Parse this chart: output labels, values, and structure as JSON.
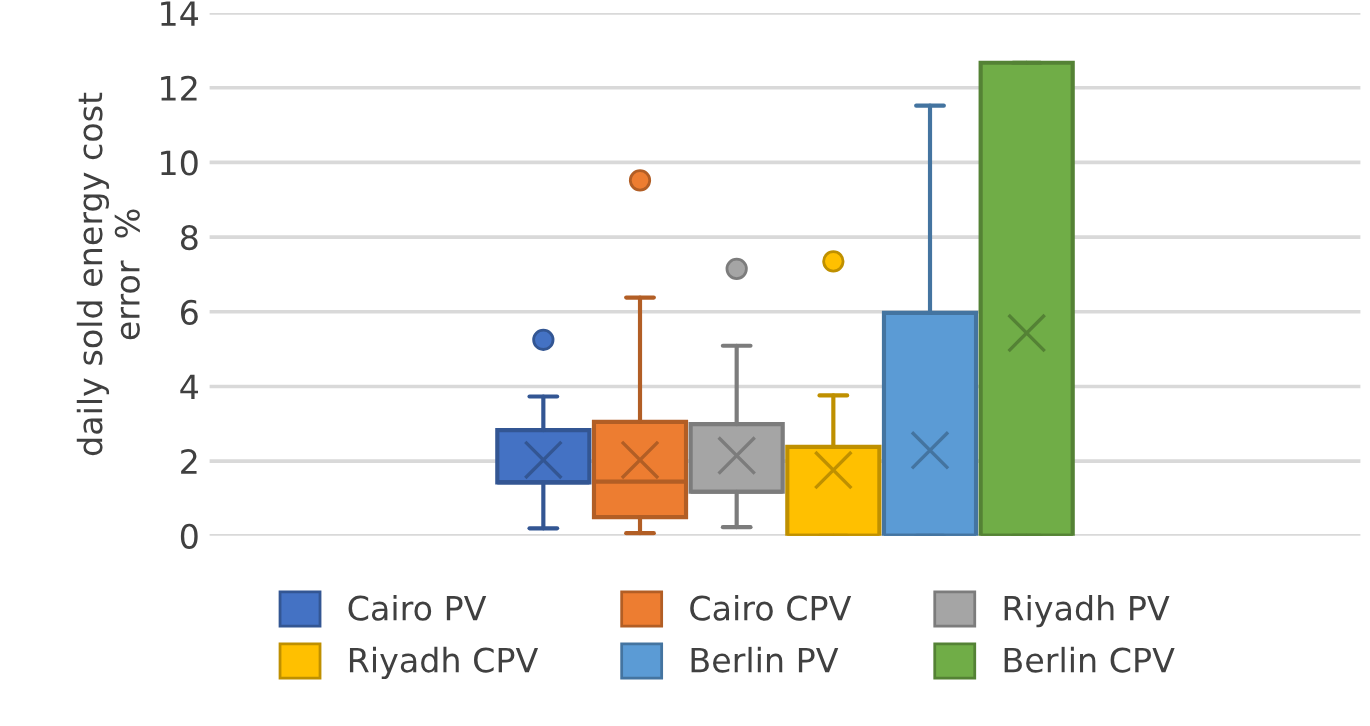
{
  "chart_data": {
    "type": "box",
    "ylabel": "daily sold energy cost\nerror  %",
    "categories": [
      null
    ],
    "ylim": [
      0,
      14
    ],
    "yticks": [
      0,
      2,
      4,
      6,
      8,
      10,
      12,
      14
    ],
    "grid": "y",
    "legend": "bottom",
    "series": [
      {
        "name": "Cairo PV",
        "color": "#4472c4",
        "boxes": [
          {
            "low": 0.2,
            "q1": 1.43,
            "median": 1.43,
            "q3": 2.83,
            "high": 3.73,
            "mean": 2.03,
            "outliers": [
              5.25
            ]
          }
        ]
      },
      {
        "name": "Cairo CPV",
        "color": "#ed7d31",
        "boxes": [
          {
            "low": 0.07,
            "q1": 0.5,
            "median": 1.45,
            "q3": 3.05,
            "high": 6.38,
            "mean": 2.03,
            "outliers": [
              9.52
            ]
          }
        ]
      },
      {
        "name": "Riyadh PV",
        "color": "#a5a5a5",
        "boxes": [
          {
            "low": 0.23,
            "q1": 1.18,
            "median": 1.18,
            "q3": 2.99,
            "high": 5.09,
            "mean": 2.15,
            "outliers": [
              7.15
            ]
          }
        ]
      },
      {
        "name": "Riyadh CPV",
        "color": "#ffc000",
        "boxes": [
          {
            "low": 0,
            "q1": 0,
            "median": 0,
            "q3": 2.38,
            "high": 3.76,
            "mean": 1.76,
            "outliers": [
              7.35
            ]
          }
        ]
      },
      {
        "name": "Berlin PV",
        "color": "#5b9bd5",
        "boxes": [
          {
            "low": 0,
            "q1": 0,
            "median": 0,
            "q3": 5.97,
            "high": 11.52,
            "mean": 2.29
          }
        ]
      },
      {
        "name": "Berlin CPV",
        "color": "#70ad47",
        "boxes": [
          {
            "low": 0,
            "q1": 0,
            "median": 0,
            "q3": 12.67,
            "high": 12.67,
            "mean": 5.43
          }
        ]
      }
    ]
  }
}
